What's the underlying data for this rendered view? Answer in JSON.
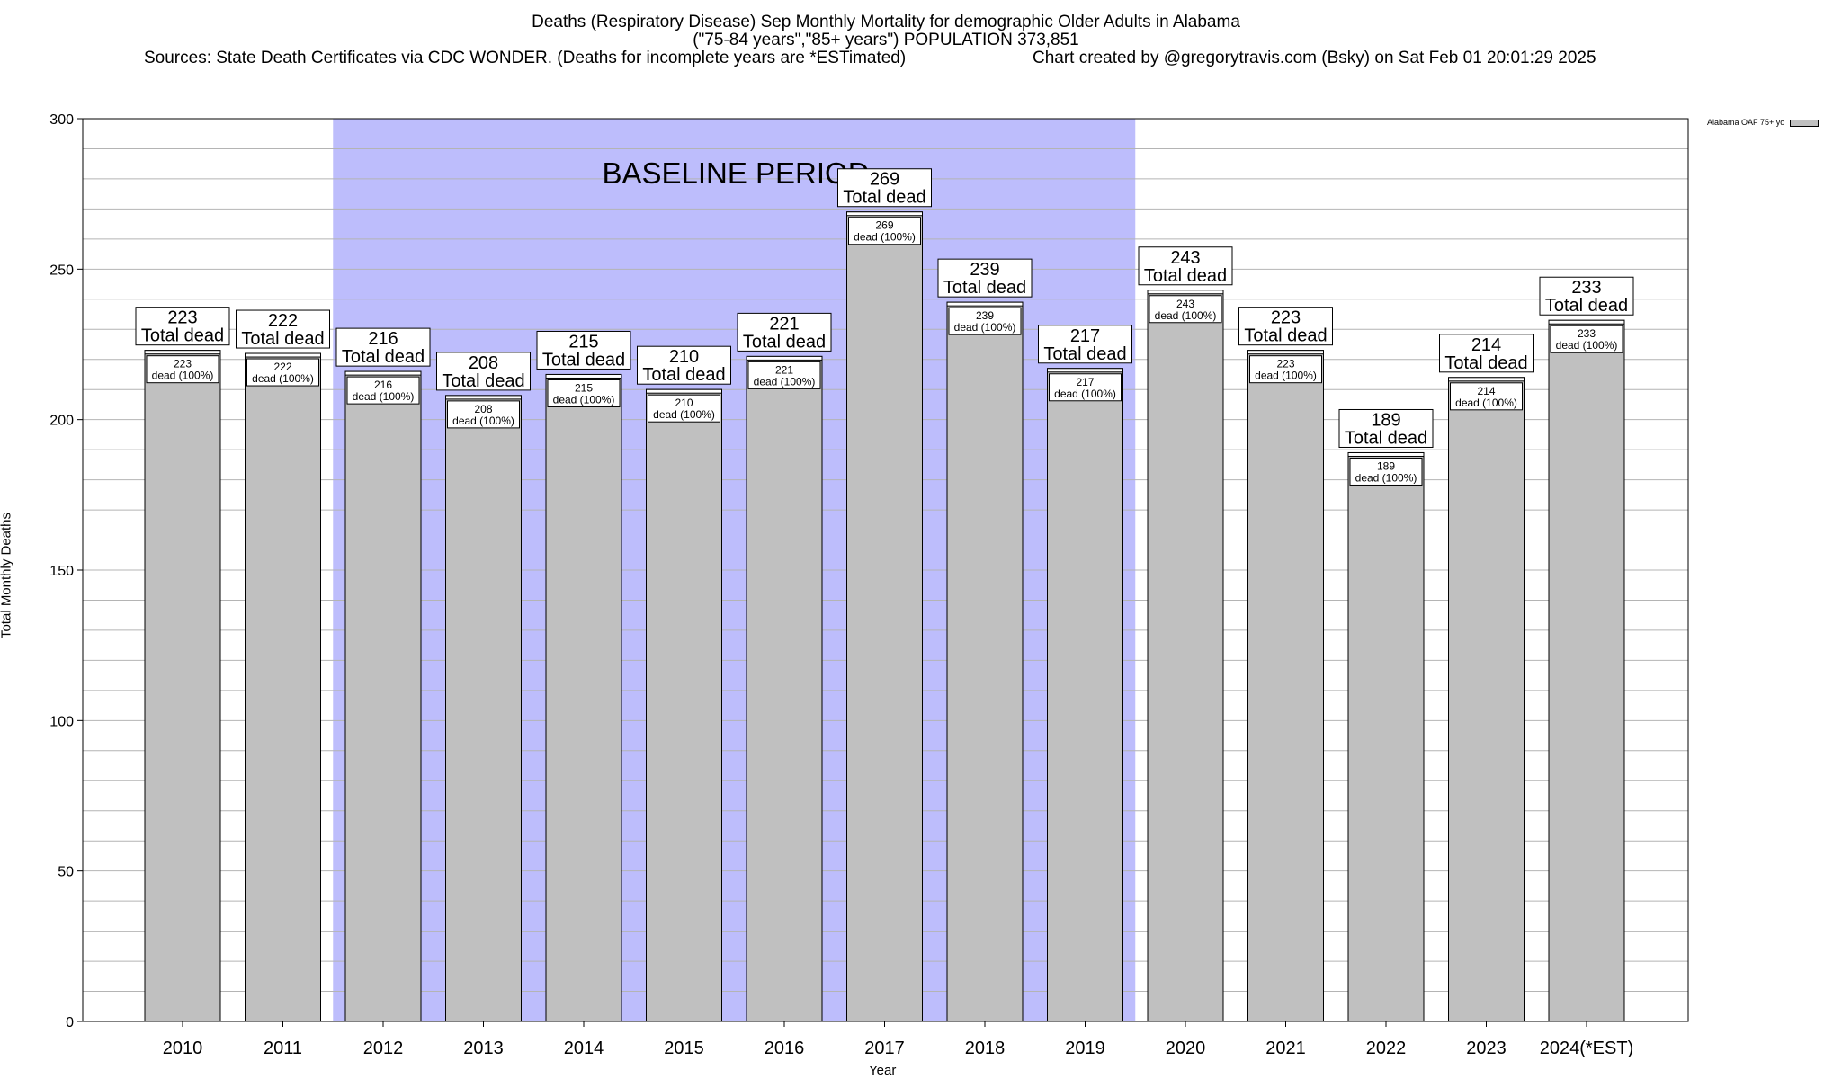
{
  "chart_data": {
    "type": "bar",
    "title": "Deaths (Respiratory Disease) Sep Monthly Mortality for demographic Older Adults in Alabama",
    "subtitle": "(\"75-84 years\",\"85+ years\") POPULATION 373,851",
    "sources": "Sources: State Death Certificates via CDC WONDER. (Deaths for incomplete years are *ESTimated)",
    "credit": "Chart created by @gregorytravis.com (Bsky) on Sat Feb 01 20:01:29 2025",
    "xlabel": "Year",
    "ylabel": "Total Monthly Deaths",
    "ylim": [
      0,
      300
    ],
    "yticks": [
      0,
      50,
      100,
      150,
      200,
      250,
      300
    ],
    "grid": true,
    "legend_position": "top-right",
    "categories": [
      "2010",
      "2011",
      "2012",
      "2013",
      "2014",
      "2015",
      "2016",
      "2017",
      "2018",
      "2019",
      "2020",
      "2021",
      "2022",
      "2023",
      "2024(*EST)"
    ],
    "series": [
      {
        "name": "Alabama OAF 75+ yo",
        "values": [
          223,
          222,
          216,
          208,
          215,
          210,
          221,
          269,
          239,
          217,
          243,
          223,
          189,
          214,
          233
        ],
        "color": "#c0c0c0"
      }
    ],
    "total_label_suffix": "Total dead",
    "inner_label_suffix": "dead (100%)",
    "baseline": {
      "label": "BASELINE PERIOD",
      "start_category": "2012",
      "end_category": "2019",
      "color": "#bdbdfc"
    }
  }
}
